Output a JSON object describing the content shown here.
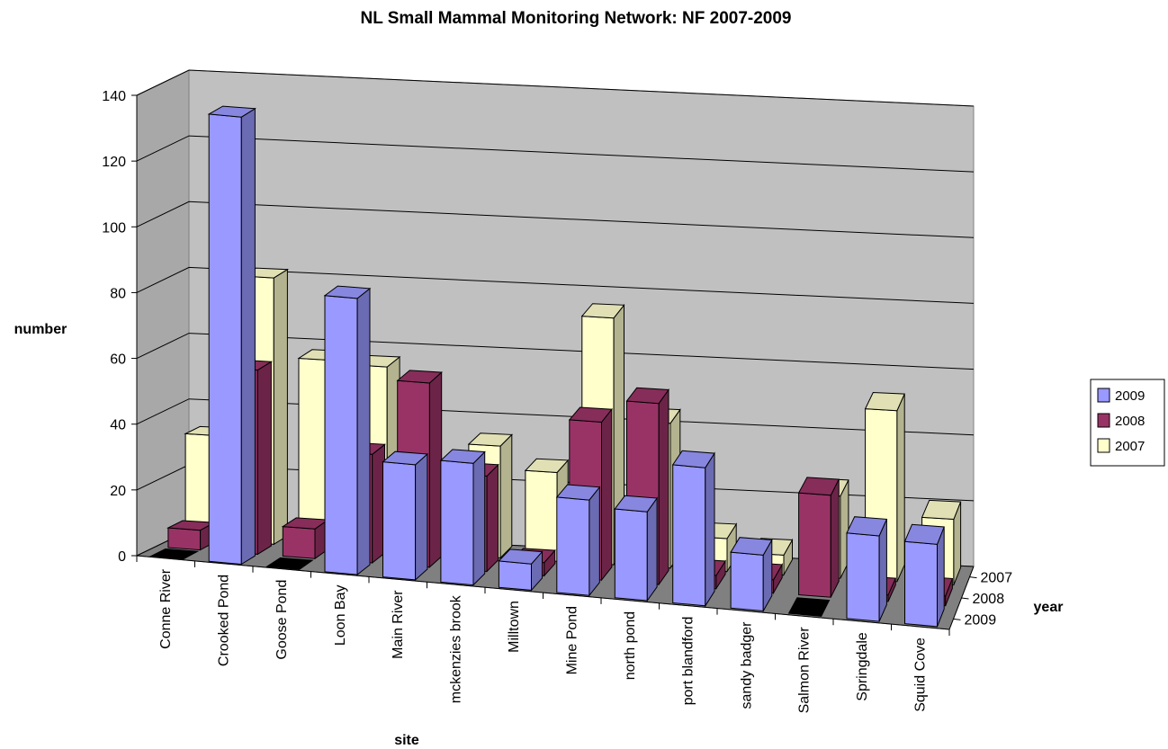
{
  "chart_data": {
    "type": "bar",
    "variant": "3d-clustered-depth",
    "title": "NL Small Mammal Monitoring Network: NF 2007-2009",
    "ylabel": "number",
    "xlabel": "site",
    "zlabel": "year",
    "ylim": [
      0,
      140
    ],
    "yticks": [
      0,
      20,
      40,
      60,
      80,
      100,
      120,
      140
    ],
    "grid": true,
    "legend_position": "right",
    "categories": [
      "Conne River",
      "Crooked Pond",
      "Goose Pond",
      "Loon Bay",
      "Main River",
      "mckenzies brook",
      "Milltown",
      "Mine Pond",
      "north pond",
      "port blandford",
      "sandy badger",
      "Salmon River",
      "Springdale",
      "Squid Cove"
    ],
    "depth_labels": [
      "2007",
      "2008",
      "2009"
    ],
    "series": [
      {
        "name": "2009",
        "color": "#9999ff",
        "values": [
          0,
          136,
          0,
          84,
          35,
          37,
          8,
          29,
          27,
          42,
          17,
          0,
          26,
          25
        ]
      },
      {
        "name": "2008",
        "color": "#993366",
        "values": [
          6,
          56,
          9,
          33,
          56,
          29,
          4,
          48,
          55,
          4,
          4,
          31,
          2,
          3
        ]
      },
      {
        "name": "2007",
        "color": "#ffffcc",
        "values": [
          32,
          81,
          57,
          56,
          8,
          34,
          27,
          75,
          44,
          10,
          6,
          25,
          52,
          20
        ]
      }
    ]
  }
}
